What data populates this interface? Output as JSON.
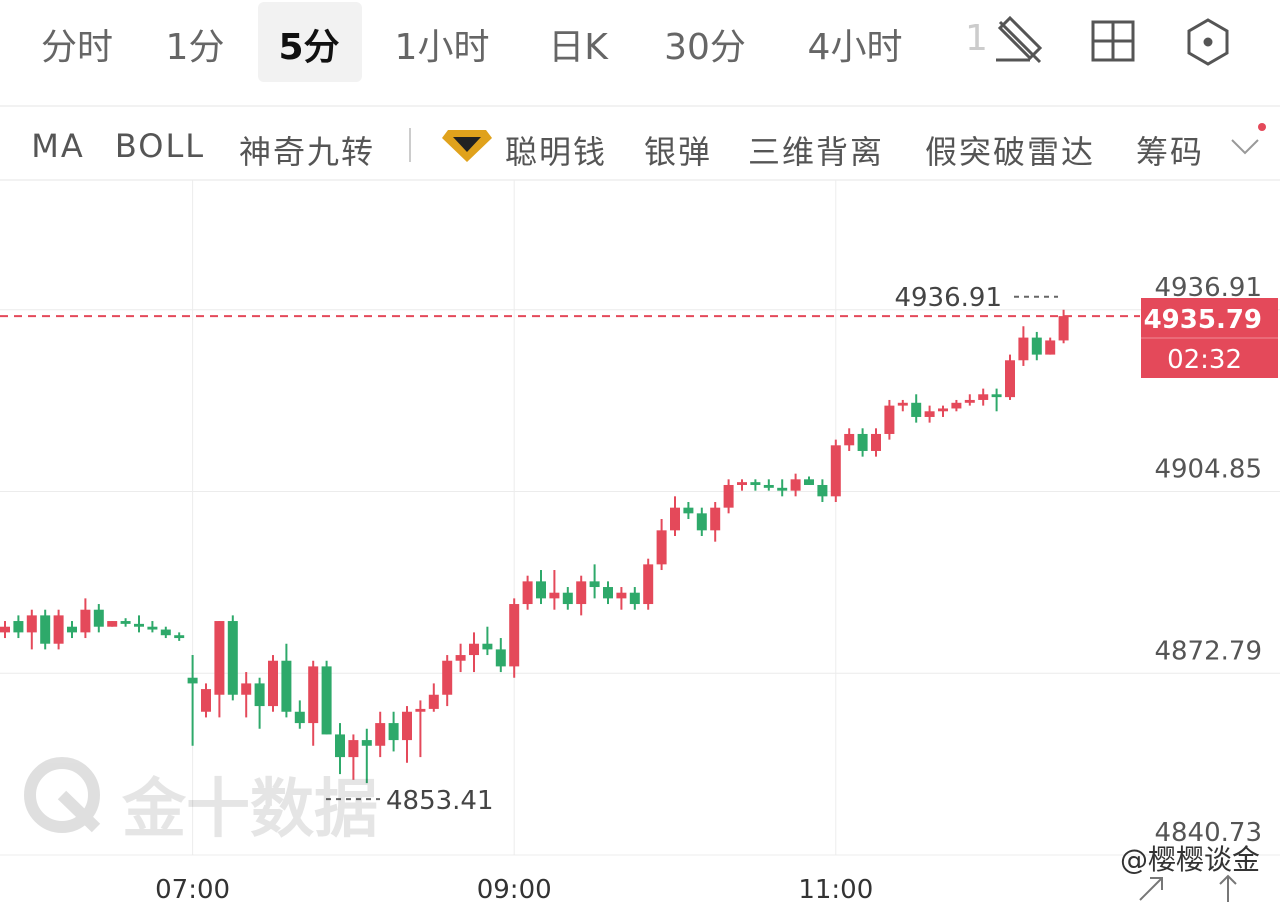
{
  "tabs": [
    "分时",
    "1分",
    "5分",
    "1小时",
    "日K",
    "30分",
    "4小时",
    "1"
  ],
  "indicators": [
    "MA",
    "BOLL",
    "神奇九转",
    "聪明钱",
    "银弹",
    "三维背离",
    "假突破雷达",
    "筹码"
  ],
  "watermark": "金十数据",
  "credit": "@樱樱谈金",
  "chart_data": {
    "type": "candlestick",
    "x": [
      null,
      null,
      null,
      null,
      null,
      null,
      null,
      null,
      null,
      null,
      null,
      null,
      null,
      null,
      "07:00",
      null,
      null,
      null,
      null,
      null,
      null,
      null,
      null,
      null,
      null,
      null,
      null,
      null,
      null,
      null,
      null,
      null,
      null,
      null,
      null,
      null,
      null,
      null,
      "09:00",
      null,
      null,
      null,
      null,
      null,
      null,
      null,
      null,
      null,
      null,
      null,
      null,
      null,
      null,
      null,
      null,
      null,
      null,
      null,
      null,
      null,
      null,
      null,
      "11:00",
      null,
      null,
      null,
      null,
      null,
      null,
      null,
      null,
      null,
      null,
      null,
      null,
      null,
      null,
      null,
      null,
      null
    ],
    "ohlc": [
      [
        4880,
        4882,
        4879,
        4881
      ],
      [
        4882,
        4883,
        4879,
        4880
      ],
      [
        4880,
        4884,
        4877,
        4883
      ],
      [
        4883,
        4884,
        4877,
        4878
      ],
      [
        4878,
        4884,
        4877,
        4883
      ],
      [
        4881,
        4882,
        4879,
        4880
      ],
      [
        4880,
        4886,
        4879,
        4884
      ],
      [
        4884,
        4885,
        4880,
        4881
      ],
      [
        4881,
        4882,
        4881,
        4882
      ],
      [
        4882,
        4882.5,
        4881,
        4881.5
      ],
      [
        4881.5,
        4883,
        4880,
        4881
      ],
      [
        4881,
        4882,
        4880,
        4880.5
      ],
      [
        4880.5,
        4881,
        4879,
        4879.5
      ],
      [
        4879.5,
        4880,
        4878.5,
        4879
      ],
      [
        4872,
        4876,
        4860,
        4871
      ],
      [
        4866,
        4871,
        4865,
        4870
      ],
      [
        4869,
        4882,
        4865,
        4882
      ],
      [
        4882,
        4883,
        4868,
        4869
      ],
      [
        4869,
        4873,
        4865,
        4871
      ],
      [
        4871,
        4872,
        4863,
        4867
      ],
      [
        4867,
        4876,
        4866,
        4875
      ],
      [
        4875,
        4878,
        4865,
        4866
      ],
      [
        4866,
        4868,
        4863,
        4864
      ],
      [
        4864,
        4875,
        4860,
        4874
      ],
      [
        4874,
        4875,
        4862,
        4862
      ],
      [
        4862,
        4864,
        4855,
        4858
      ],
      [
        4858,
        4862,
        4854,
        4861
      ],
      [
        4861,
        4863,
        4853.41,
        4860
      ],
      [
        4860,
        4866,
        4858,
        4864
      ],
      [
        4864,
        4866,
        4859,
        4861
      ],
      [
        4861,
        4867,
        4857,
        4866
      ],
      [
        4866,
        4868,
        4858,
        4866.5
      ],
      [
        4866.5,
        4871,
        4866,
        4869
      ],
      [
        4869,
        4876,
        4867,
        4875
      ],
      [
        4875,
        4878,
        4873,
        4876
      ],
      [
        4876,
        4880,
        4873,
        4878
      ],
      [
        4878,
        4881,
        4876,
        4877
      ],
      [
        4877,
        4879,
        4873,
        4874
      ],
      [
        4874,
        4886,
        4872,
        4885
      ],
      [
        4885,
        4890,
        4884,
        4889
      ],
      [
        4889,
        4891,
        4885,
        4886
      ],
      [
        4886,
        4891,
        4884,
        4887
      ],
      [
        4887,
        4888,
        4884,
        4885
      ],
      [
        4885,
        4890,
        4883,
        4889
      ],
      [
        4889,
        4892,
        4886,
        4888
      ],
      [
        4888,
        4889,
        4885,
        4886
      ],
      [
        4886,
        4888,
        4884,
        4887
      ],
      [
        4887,
        4888,
        4884,
        4885
      ],
      [
        4885,
        4893,
        4884,
        4892
      ],
      [
        4892,
        4900,
        4891,
        4898
      ],
      [
        4898,
        4904,
        4897,
        4902
      ],
      [
        4902,
        4903,
        4900,
        4901
      ],
      [
        4901,
        4902,
        4897,
        4898
      ],
      [
        4898,
        4903,
        4896,
        4902
      ],
      [
        4902,
        4907,
        4901,
        4906
      ],
      [
        4906,
        4907,
        4905,
        4906.5
      ],
      [
        4906.5,
        4907,
        4905,
        4906
      ],
      [
        4906,
        4907,
        4905,
        4905.5
      ],
      [
        4905.5,
        4907,
        4904,
        4905
      ],
      [
        4905,
        4908,
        4904,
        4907
      ],
      [
        4907,
        4907.5,
        4906,
        4906
      ],
      [
        4906,
        4907,
        4903,
        4904
      ],
      [
        4904,
        4914,
        4903,
        4913
      ],
      [
        4913,
        4916,
        4912,
        4915
      ],
      [
        4915,
        4916,
        4911,
        4912
      ],
      [
        4912,
        4916,
        4911,
        4915
      ],
      [
        4915,
        4921,
        4914,
        4920
      ],
      [
        4920,
        4921,
        4919,
        4920.5
      ],
      [
        4920.5,
        4922,
        4917,
        4918
      ],
      [
        4918,
        4920,
        4917,
        4919
      ],
      [
        4919,
        4920,
        4918,
        4919.5
      ],
      [
        4919.5,
        4921,
        4919,
        4920.5
      ],
      [
        4920.5,
        4922,
        4920,
        4921
      ],
      [
        4921,
        4923,
        4920,
        4922
      ],
      [
        4922,
        4923,
        4919,
        4921.5
      ],
      [
        4921.5,
        4929,
        4921,
        4928
      ],
      [
        4928,
        4934,
        4927,
        4932
      ],
      [
        4932,
        4933,
        4928,
        4929
      ],
      [
        4929,
        4932,
        4929,
        4931.5
      ],
      [
        4931.5,
        4936.91,
        4931,
        4935.79
      ]
    ],
    "up_color": "#e4495a",
    "down_color": "#2ea96a",
    "ylim": [
      4840.73,
      4959.8
    ],
    "yticks": [
      4840.73,
      4872.79,
      4904.85,
      4936.91
    ],
    "grid": true,
    "last_price": 4935.79,
    "countdown": "02:32"
  }
}
